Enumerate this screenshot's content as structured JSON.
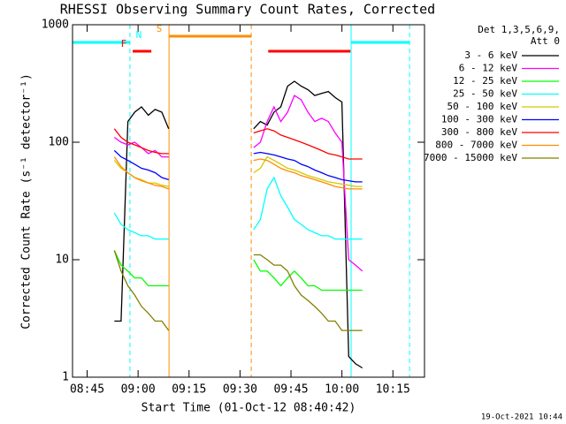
{
  "chart_data": {
    "type": "line",
    "title": "RHESSI Observing Summary Count Rates, Corrected",
    "xlabel": "Start Time (01-Oct-12 08:40:42)",
    "ylabel": "Corrected Count Rate (s⁻¹ detector⁻¹)",
    "legend_title": [
      "Det 1,3,5,6,9,",
      "Att 0"
    ],
    "footer": "19-Oct-2021 10:44",
    "log_y": true,
    "xlim": [
      520.7,
      624.3
    ],
    "ylim": [
      1,
      1000
    ],
    "yticks": [
      1,
      10,
      100,
      1000
    ],
    "xticks": [
      {
        "value": 525,
        "label": "08:45"
      },
      {
        "value": 540,
        "label": "09:00"
      },
      {
        "value": 555,
        "label": "09:15"
      },
      {
        "value": 570,
        "label": "09:30"
      },
      {
        "value": 585,
        "label": "09:45"
      },
      {
        "value": 600,
        "label": "10:00"
      },
      {
        "value": 615,
        "label": "10:15"
      }
    ],
    "flags": [
      {
        "label": "N",
        "color": "#00ffff",
        "lines": true,
        "spans": [
          [
            520.7,
            537.6
          ],
          [
            602.7,
            619.9
          ]
        ]
      },
      {
        "label": "S",
        "color": "#ff8c00",
        "lines": true,
        "spans": [
          [
            549.1,
            573.3
          ]
        ]
      },
      {
        "label": "F",
        "color": "#ff0000",
        "lines": false,
        "spans": [
          [
            538.4,
            543.9
          ],
          [
            578.3,
            602.5
          ]
        ]
      }
    ],
    "x": [
      533,
      535,
      537,
      539,
      541,
      543,
      545,
      547,
      549,
      560,
      574,
      576,
      578,
      580,
      582,
      584,
      586,
      588,
      590,
      592,
      594,
      596,
      598,
      600,
      602,
      604,
      606
    ],
    "series": [
      {
        "name": "3 - 6 keV",
        "color": "#000000",
        "values": [
          3,
          3,
          150,
          180,
          200,
          170,
          190,
          180,
          130,
          null,
          130,
          150,
          140,
          180,
          200,
          300,
          330,
          300,
          280,
          250,
          260,
          270,
          240,
          220,
          1.5,
          1.3,
          1.2
        ]
      },
      {
        "name": "6 - 12 keV",
        "color": "#ff00ff",
        "values": [
          110,
          100,
          95,
          100,
          90,
          80,
          85,
          75,
          75,
          null,
          90,
          100,
          150,
          200,
          150,
          180,
          250,
          230,
          180,
          150,
          160,
          150,
          120,
          100,
          10,
          9,
          8
        ]
      },
      {
        "name": "12 - 25 keV",
        "color": "#00ff00",
        "values": [
          12,
          9,
          8,
          7,
          7,
          6,
          6,
          6,
          6,
          null,
          10,
          8,
          8,
          7,
          6,
          7,
          8,
          7,
          6,
          6,
          5.5,
          5.5,
          5.5,
          5.5,
          5.5,
          5.5,
          5.5
        ]
      },
      {
        "name": "25 - 50 keV",
        "color": "#00ffff",
        "values": [
          25,
          20,
          18,
          17,
          16,
          16,
          15,
          15,
          15,
          null,
          18,
          22,
          40,
          50,
          35,
          28,
          22,
          20,
          18,
          17,
          16,
          16,
          15,
          15,
          15,
          15,
          15
        ]
      },
      {
        "name": "50 - 100 keV",
        "color": "#d4c800",
        "values": [
          70,
          60,
          55,
          50,
          48,
          45,
          45,
          43,
          42,
          null,
          55,
          60,
          75,
          70,
          65,
          60,
          58,
          55,
          52,
          50,
          48,
          46,
          45,
          44,
          43,
          42,
          42
        ]
      },
      {
        "name": "100 - 300 keV",
        "color": "#0000ff",
        "values": [
          85,
          75,
          70,
          65,
          60,
          58,
          55,
          50,
          48,
          null,
          80,
          82,
          80,
          78,
          75,
          72,
          70,
          65,
          62,
          58,
          55,
          52,
          50,
          48,
          47,
          46,
          46
        ]
      },
      {
        "name": "300 - 800 keV",
        "color": "#ff0000",
        "values": [
          130,
          110,
          100,
          95,
          90,
          85,
          82,
          80,
          80,
          null,
          120,
          125,
          130,
          125,
          115,
          110,
          105,
          100,
          95,
          90,
          85,
          80,
          78,
          75,
          72,
          72,
          72
        ]
      },
      {
        "name": "800 - 7000 keV",
        "color": "#ff8c00",
        "values": [
          75,
          62,
          55,
          50,
          47,
          45,
          43,
          42,
          40,
          null,
          70,
          72,
          70,
          65,
          60,
          57,
          55,
          52,
          50,
          48,
          46,
          44,
          42,
          41,
          40,
          40,
          40
        ]
      },
      {
        "name": "7000 - 15000 keV",
        "color": "#808000",
        "values": [
          12,
          8,
          6,
          5,
          4,
          3.5,
          3,
          3,
          2.5,
          null,
          11,
          11,
          10,
          9,
          9,
          8,
          6,
          5,
          4.5,
          4,
          3.5,
          3,
          3,
          2.5,
          2.5,
          2.5,
          2.5
        ]
      }
    ]
  }
}
